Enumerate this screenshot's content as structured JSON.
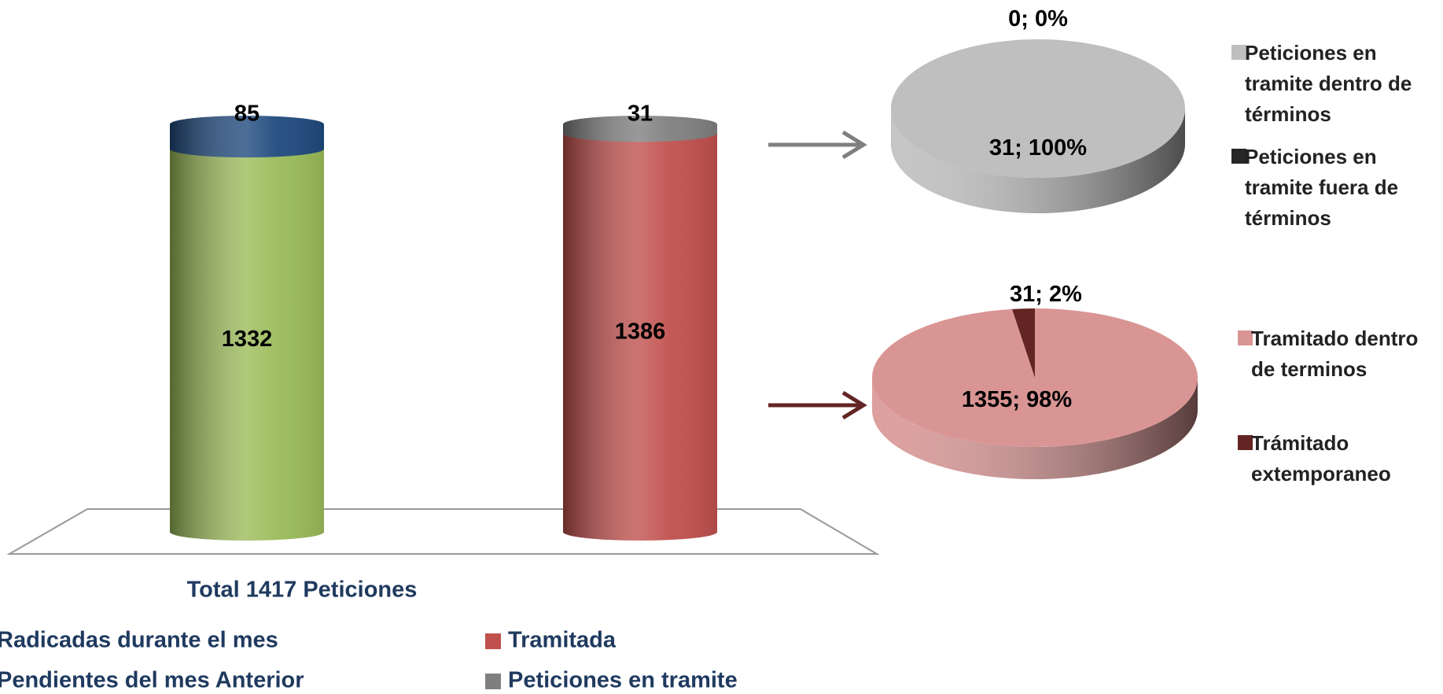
{
  "chart_data": [
    {
      "type": "bar",
      "categories": [
        "Total 1417 Peticiones",
        null
      ],
      "series": [
        {
          "name": "Radicadas durante el mes",
          "color": "#9bbb59",
          "values": [
            1332,
            null
          ]
        },
        {
          "name": "Pendientes del mes Anterior",
          "color": "#1f497d",
          "values": [
            85,
            null
          ]
        },
        {
          "name": "Tramitada",
          "color": "#c0504d",
          "values": [
            null,
            1386
          ]
        },
        {
          "name": "Peticiones en tramite",
          "color": "#7f7f7f",
          "values": [
            null,
            31
          ]
        }
      ]
    },
    {
      "type": "pie",
      "categories": [
        "Peticiones en tramite dentro de términos",
        "Peticiones en tramite fuera de términos"
      ],
      "values": [
        31,
        0
      ],
      "value_labels": [
        "31; 100%",
        "0; 0%"
      ],
      "colors": [
        "#bfbfbf",
        "#262626"
      ]
    },
    {
      "type": "pie",
      "categories": [
        "Tramitado dentro de terminos",
        "Trámitado extemporaneo"
      ],
      "values": [
        1355,
        31
      ],
      "value_labels": [
        "1355; 98%",
        "31; 2%"
      ],
      "colors": [
        "#d99594",
        "#632523"
      ]
    }
  ]
}
